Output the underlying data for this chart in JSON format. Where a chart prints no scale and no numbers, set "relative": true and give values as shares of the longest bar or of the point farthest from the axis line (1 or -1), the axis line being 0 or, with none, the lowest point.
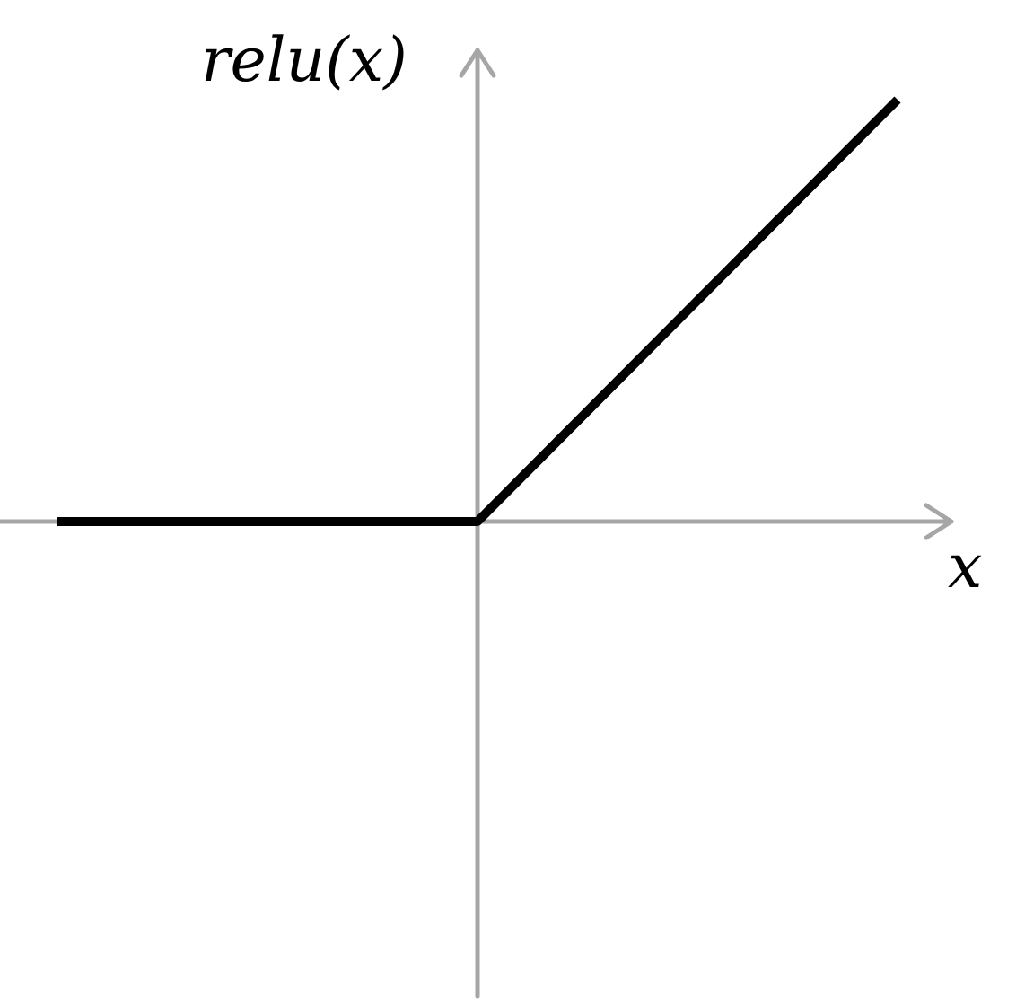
{
  "chart_data": {
    "type": "line",
    "relative": true,
    "xlabel": "x",
    "ylabel": "relu(x)",
    "color": "#000000",
    "legend": false,
    "categories": [
      null,
      null,
      null
    ],
    "values": [
      0,
      0,
      1
    ]
  }
}
